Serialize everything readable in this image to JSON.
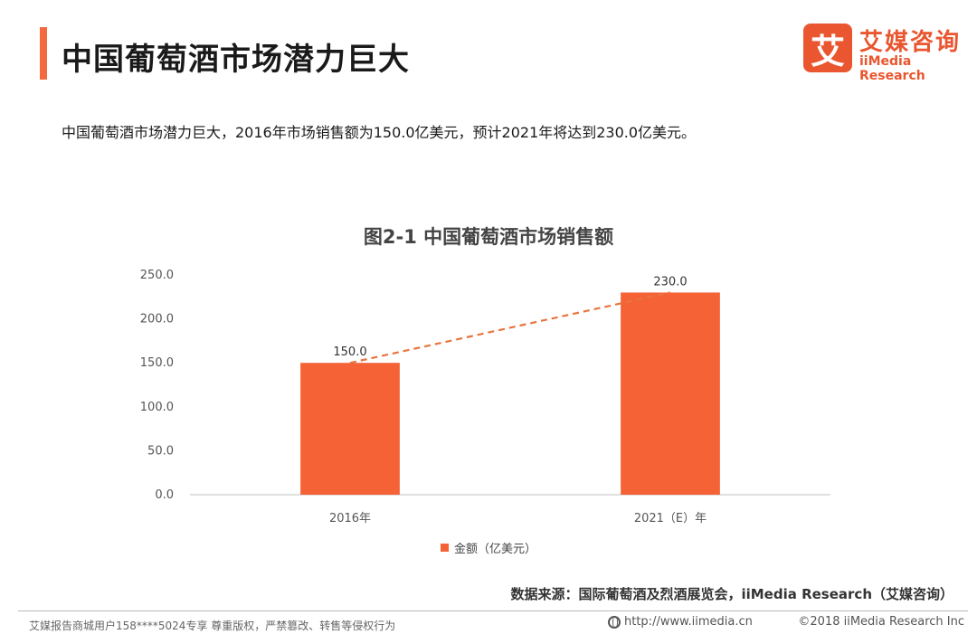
{
  "header": {
    "title": "中国葡萄酒市场潜力巨大",
    "logo_mark": "艾",
    "logo_cn": "艾媒咨询",
    "logo_en": "iiMedia Research"
  },
  "summary": "中国葡萄酒市场潜力巨大，2016年市场销售额为150.0亿美元，预计2021年将达到230.0亿美元。",
  "chart_data": {
    "type": "bar",
    "title": "图2-1 中国葡萄酒市场销售额",
    "categories": [
      "2016年",
      "2021（E）年"
    ],
    "series": [
      {
        "name": "金额（亿美元）",
        "values": [
          150.0,
          230.0
        ],
        "color": "#f46236"
      }
    ],
    "value_labels": [
      "150.0",
      "230.0"
    ],
    "ylim": [
      0,
      250
    ],
    "yticks": [
      "0.0",
      "50.0",
      "100.0",
      "150.0",
      "200.0",
      "250.0"
    ],
    "trend_line": {
      "style": "dashed",
      "color": "#e9743f"
    },
    "legend_position": "bottom",
    "grid": false
  },
  "footer": {
    "source": "数据来源：国际葡萄酒及烈酒展览会，iiMedia Research（艾媒咨询）",
    "left": "艾媒报告商城用户158****5024专享 尊重版权，严禁篡改、转售等侵权行为",
    "url": "http://www.iimedia.cn",
    "copyright": "©2018 iiMedia Research Inc"
  },
  "colors": {
    "accent": "#f26a3d",
    "bar": "#f46236"
  }
}
